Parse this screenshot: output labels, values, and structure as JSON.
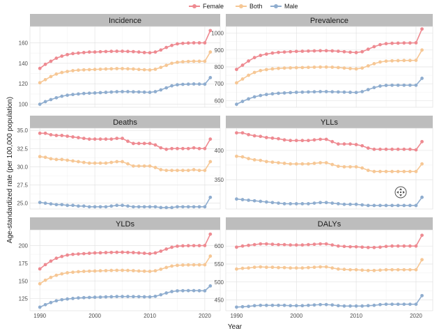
{
  "legend": [
    {
      "name": "Female",
      "color": "#EE8A91"
    },
    {
      "name": "Both",
      "color": "#F6C795"
    },
    {
      "name": "Male",
      "color": "#8FADCF"
    }
  ],
  "axis": {
    "xlabel": "Year",
    "ylabel": "Age-standardized rate (per 100,000 population)"
  },
  "chart_data": [
    {
      "type": "line",
      "title": "Incidence",
      "x": [
        1990,
        1991,
        1992,
        1993,
        1994,
        1995,
        1996,
        1997,
        1998,
        1999,
        2000,
        2001,
        2002,
        2003,
        2004,
        2005,
        2006,
        2007,
        2008,
        2009,
        2010,
        2011,
        2012,
        2013,
        2014,
        2015,
        2016,
        2017,
        2018,
        2019,
        2020,
        2021
      ],
      "xticks": [
        1990,
        2000,
        2010,
        2020
      ],
      "ylim": [
        97,
        176
      ],
      "yticks": [
        100,
        120,
        140,
        160
      ],
      "series": [
        {
          "name": "Female",
          "values": [
            135,
            139,
            142,
            145,
            147,
            148.5,
            149.5,
            150,
            150.5,
            151,
            151,
            151.3,
            151.5,
            151.7,
            151.8,
            151.8,
            151.6,
            151.4,
            151,
            150.5,
            150.3,
            151,
            153,
            155.5,
            157.5,
            159,
            159.5,
            159.8,
            160,
            160,
            160,
            172
          ]
        },
        {
          "name": "Both",
          "values": [
            121,
            124,
            127,
            129.5,
            131,
            132,
            132.8,
            133.3,
            133.6,
            133.8,
            134,
            134.2,
            134.4,
            134.6,
            134.8,
            134.8,
            134.6,
            134.4,
            134,
            133.7,
            133.5,
            134.2,
            136,
            138,
            140,
            141,
            141.5,
            141.8,
            142,
            142,
            142,
            151
          ]
        },
        {
          "name": "Male",
          "values": [
            100,
            102.5,
            104.5,
            106.3,
            107.8,
            108.8,
            109.5,
            110,
            110.5,
            110.8,
            111,
            111.3,
            111.6,
            111.9,
            112.2,
            112.3,
            112.3,
            112.1,
            112,
            111.8,
            111.6,
            112.3,
            114,
            116,
            118,
            119,
            119.4,
            119.6,
            119.8,
            119.7,
            119.6,
            126
          ]
        }
      ]
    },
    {
      "type": "line",
      "title": "Prevalence",
      "x": [
        1990,
        1991,
        1992,
        1993,
        1994,
        1995,
        1996,
        1997,
        1998,
        1999,
        2000,
        2001,
        2002,
        2003,
        2004,
        2005,
        2006,
        2007,
        2008,
        2009,
        2010,
        2011,
        2012,
        2013,
        2014,
        2015,
        2016,
        2017,
        2018,
        2019,
        2020,
        2021
      ],
      "xticks": [
        1990,
        2000,
        2010,
        2020
      ],
      "ylim": [
        560,
        1040
      ],
      "yticks": [
        600,
        700,
        800,
        900,
        1000
      ],
      "series": [
        {
          "name": "Female",
          "values": [
            785,
            810,
            835,
            855,
            868,
            876,
            882,
            886,
            888,
            890,
            892,
            893,
            894,
            895,
            896,
            896,
            895,
            893,
            890,
            887,
            885,
            890,
            905,
            920,
            932,
            938,
            940,
            941,
            942,
            942,
            943,
            1025
          ]
        },
        {
          "name": "Both",
          "values": [
            705,
            728,
            750,
            767,
            778,
            784,
            788,
            791,
            793,
            794,
            795,
            796,
            797,
            798,
            799,
            799,
            798,
            796,
            793,
            790,
            788,
            793,
            806,
            819,
            829,
            834,
            836,
            837,
            838,
            838,
            839,
            900
          ]
        },
        {
          "name": "Male",
          "values": [
            578,
            595,
            610,
            622,
            630,
            636,
            640,
            643,
            645,
            647,
            649,
            650,
            651,
            652,
            653,
            653,
            652,
            651,
            650,
            649,
            648,
            653,
            665,
            677,
            686,
            690,
            691,
            691,
            691,
            691,
            691,
            732
          ]
        }
      ]
    },
    {
      "type": "line",
      "title": "Deaths",
      "x": [
        1990,
        1991,
        1992,
        1993,
        1994,
        1995,
        1996,
        1997,
        1998,
        1999,
        2000,
        2001,
        2002,
        2003,
        2004,
        2005,
        2006,
        2007,
        2008,
        2009,
        2010,
        2011,
        2012,
        2013,
        2014,
        2015,
        2016,
        2017,
        2018,
        2019,
        2020,
        2021
      ],
      "xticks": [
        1990,
        2000,
        2010,
        2020
      ],
      "ylim": [
        24.2,
        35.3
      ],
      "yticks": [
        25.0,
        27.5,
        30.0,
        32.5,
        35.0
      ],
      "series": [
        {
          "name": "Female",
          "values": [
            34.6,
            34.6,
            34.4,
            34.3,
            34.3,
            34.2,
            34.1,
            34,
            33.9,
            33.8,
            33.8,
            33.8,
            33.8,
            33.8,
            33.9,
            33.9,
            33.5,
            33.2,
            33.2,
            33.2,
            33.2,
            33.0,
            32.6,
            32.4,
            32.5,
            32.5,
            32.5,
            32.5,
            32.6,
            32.5,
            32.5,
            33.8
          ]
        },
        {
          "name": "Both",
          "values": [
            31.4,
            31.3,
            31.1,
            31.0,
            31.0,
            30.9,
            30.8,
            30.7,
            30.6,
            30.5,
            30.5,
            30.5,
            30.5,
            30.6,
            30.7,
            30.7,
            30.4,
            30.1,
            30.1,
            30.1,
            30.1,
            29.9,
            29.6,
            29.5,
            29.5,
            29.5,
            29.5,
            29.5,
            29.6,
            29.5,
            29.5,
            30.7
          ]
        },
        {
          "name": "Male",
          "values": [
            25.1,
            25.0,
            24.9,
            24.8,
            24.8,
            24.7,
            24.7,
            24.6,
            24.6,
            24.5,
            24.5,
            24.5,
            24.5,
            24.6,
            24.7,
            24.7,
            24.6,
            24.5,
            24.5,
            24.5,
            24.5,
            24.5,
            24.4,
            24.4,
            24.4,
            24.5,
            24.5,
            24.5,
            24.5,
            24.5,
            24.5,
            25.8
          ]
        }
      ]
    },
    {
      "type": "line",
      "title": "YLLs",
      "x": [
        1990,
        1991,
        1992,
        1993,
        1994,
        1995,
        1996,
        1997,
        1998,
        1999,
        2000,
        2001,
        2002,
        2003,
        2004,
        2005,
        2006,
        2007,
        2008,
        2009,
        2010,
        2011,
        2012,
        2013,
        2014,
        2015,
        2016,
        2017,
        2018,
        2019,
        2020,
        2021
      ],
      "xticks": [
        1990,
        2000,
        2010,
        2020
      ],
      "ylim": [
        300,
        438
      ],
      "yticks": [
        350,
        400
      ],
      "series": [
        {
          "name": "Female",
          "values": [
            430,
            430,
            427,
            425,
            424,
            422,
            421,
            420,
            418,
            417,
            417,
            417,
            417,
            418,
            419,
            419,
            415,
            411,
            411,
            411,
            410,
            408,
            404,
            402,
            402,
            402,
            402,
            402,
            402,
            402,
            401,
            415
          ]
        },
        {
          "name": "Both",
          "values": [
            390,
            389,
            386,
            384,
            383,
            381,
            380,
            379,
            378,
            377,
            377,
            377,
            377,
            378,
            379,
            379,
            376,
            373,
            372,
            372,
            372,
            370,
            366,
            364,
            364,
            364,
            364,
            364,
            364,
            364,
            364,
            377
          ]
        },
        {
          "name": "Male",
          "values": [
            317,
            316,
            315,
            314,
            313,
            312,
            311,
            310,
            309,
            309,
            309,
            309,
            309,
            310,
            311,
            311,
            310,
            309,
            308,
            308,
            308,
            307,
            306,
            306,
            306,
            306,
            306,
            306,
            306,
            306,
            306,
            320
          ]
        }
      ]
    },
    {
      "type": "line",
      "title": "YLDs",
      "x": [
        1990,
        1991,
        1992,
        1993,
        1994,
        1995,
        1996,
        1997,
        1998,
        1999,
        2000,
        2001,
        2002,
        2003,
        2004,
        2005,
        2006,
        2007,
        2008,
        2009,
        2010,
        2011,
        2012,
        2013,
        2014,
        2015,
        2016,
        2017,
        2018,
        2019,
        2020,
        2021
      ],
      "xticks": [
        1990,
        2000,
        2010,
        2020
      ],
      "ylim": [
        108,
        222
      ],
      "yticks": [
        125,
        150,
        175,
        200
      ],
      "series": [
        {
          "name": "Female",
          "values": [
            167,
            173,
            178,
            182,
            184.5,
            186.5,
            187.5,
            188,
            188.5,
            189,
            189.5,
            189.7,
            190,
            190.2,
            190.4,
            190.5,
            190.2,
            190,
            189.5,
            189,
            188.5,
            189.5,
            192,
            195,
            197.5,
            199,
            199.5,
            199.7,
            199.8,
            199.8,
            199.9,
            216
          ]
        },
        {
          "name": "Both",
          "values": [
            146,
            151,
            155,
            158,
            160,
            161.5,
            162.3,
            163,
            163.5,
            163.8,
            164,
            164.3,
            164.5,
            164.8,
            165,
            165,
            164.8,
            164.5,
            164,
            163.7,
            163.5,
            164.3,
            166.5,
            169,
            171,
            172,
            172.4,
            172.6,
            172.7,
            172.7,
            172.8,
            185
          ]
        },
        {
          "name": "Male",
          "values": [
            113,
            116.5,
            119.5,
            122,
            123.5,
            124.5,
            125.3,
            126,
            126.4,
            126.7,
            127,
            127.2,
            127.5,
            127.7,
            128,
            128,
            128,
            127.9,
            127.8,
            127.6,
            127.5,
            128.3,
            130.5,
            133,
            135,
            136,
            136.2,
            136.3,
            136.3,
            136.2,
            136.1,
            143
          ]
        }
      ]
    },
    {
      "type": "line",
      "title": "DALYs",
      "x": [
        1990,
        1991,
        1992,
        1993,
        1994,
        1995,
        1996,
        1997,
        1998,
        1999,
        2000,
        2001,
        2002,
        2003,
        2004,
        2005,
        2006,
        2007,
        2008,
        2009,
        2010,
        2011,
        2012,
        2013,
        2014,
        2015,
        2016,
        2017,
        2018,
        2019,
        2020,
        2021
      ],
      "xticks": [
        1990,
        2000,
        2010,
        2020
      ],
      "ylim": [
        420,
        645
      ],
      "yticks": [
        450,
        500,
        550,
        600
      ],
      "series": [
        {
          "name": "Female",
          "values": [
            597,
            600,
            602,
            604,
            606,
            606,
            605,
            604,
            604,
            603,
            603,
            603,
            604,
            605,
            606,
            606,
            603,
            600,
            599,
            598,
            598,
            597,
            596,
            596,
            597,
            599,
            600,
            600,
            600,
            600,
            600,
            630
          ]
        },
        {
          "name": "Both",
          "values": [
            536,
            538,
            539,
            541,
            542,
            541,
            541,
            540,
            540,
            539,
            539,
            539,
            540,
            541,
            542,
            542,
            539,
            536,
            535,
            534,
            534,
            533,
            532,
            532,
            533,
            534,
            534,
            534,
            534,
            534,
            534,
            562
          ]
        },
        {
          "name": "Male",
          "values": [
            430,
            431,
            432,
            434,
            435,
            435,
            435,
            435,
            435,
            434,
            434,
            434,
            435,
            436,
            437,
            437,
            436,
            434,
            433,
            433,
            433,
            433,
            434,
            435,
            437,
            438,
            438,
            438,
            438,
            438,
            438,
            462
          ]
        }
      ]
    }
  ]
}
